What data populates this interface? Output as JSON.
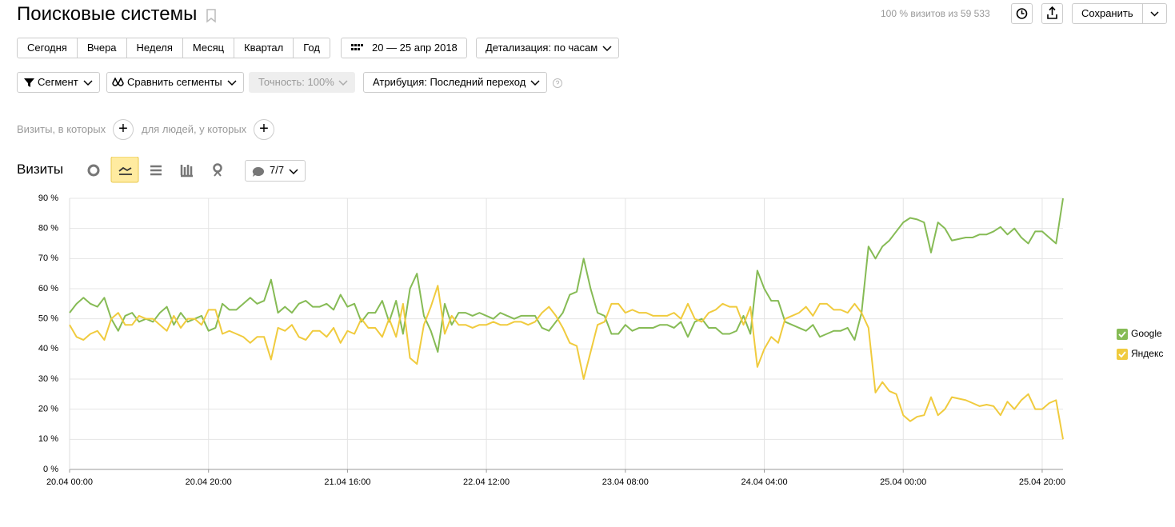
{
  "ui": {
    "title": "Поисковые системы",
    "visits_info": "100 % визитов из 59 533",
    "save": "Сохранить",
    "periods": [
      "Сегодня",
      "Вчера",
      "Неделя",
      "Месяц",
      "Квартал",
      "Год"
    ],
    "date_range": "20 — 25 апр 2018",
    "detail": "Детализация: по часам",
    "segment": "Сегмент",
    "compare": "Сравнить сегменты",
    "accuracy": "Точность: 100%",
    "attribution": "Атрибуция: Последний переход",
    "visits_where": "Визиты, в которых",
    "people_where": "для людей, у которых",
    "series_count": "7/7"
  },
  "chart_data": {
    "type": "line",
    "title": "Визиты",
    "categories": [
      "20.04 00:00",
      null,
      null,
      null,
      null,
      null,
      null,
      null,
      null,
      null,
      null,
      null,
      null,
      null,
      null,
      null,
      null,
      null,
      null,
      null,
      "20.04 20:00",
      null,
      null,
      null,
      null,
      null,
      null,
      null,
      null,
      null,
      null,
      null,
      null,
      null,
      null,
      null,
      null,
      null,
      null,
      null,
      "21.04 16:00",
      null,
      null,
      null,
      null,
      null,
      null,
      null,
      null,
      null,
      null,
      null,
      null,
      null,
      null,
      null,
      null,
      null,
      null,
      null,
      "22.04 12:00",
      null,
      null,
      null,
      null,
      null,
      null,
      null,
      null,
      null,
      null,
      null,
      null,
      null,
      null,
      null,
      null,
      null,
      null,
      null,
      "23.04 08:00",
      null,
      null,
      null,
      null,
      null,
      null,
      null,
      null,
      null,
      null,
      null,
      null,
      null,
      null,
      null,
      null,
      null,
      null,
      null,
      "24.04 04:00",
      null,
      null,
      null,
      null,
      null,
      null,
      null,
      null,
      null,
      null,
      null,
      null,
      null,
      null,
      null,
      null,
      null,
      null,
      null,
      "25.04 00:00",
      null,
      null,
      null,
      null,
      null,
      null,
      null,
      null,
      null,
      null,
      null,
      null,
      null,
      null,
      null,
      null,
      null,
      null,
      null,
      "25.04 20:00",
      null,
      null,
      null
    ],
    "series": [
      {
        "name": "Google",
        "color": "#86bb55",
        "values": [
          52,
          55,
          57,
          55,
          54,
          57,
          50,
          46,
          51,
          52,
          49,
          50,
          49,
          52,
          54,
          48,
          52,
          49,
          50,
          51,
          46,
          47,
          55,
          53,
          53,
          55,
          57,
          55,
          56,
          63,
          52,
          54,
          52,
          55,
          56,
          54,
          54,
          55,
          53,
          58,
          54,
          55,
          49,
          52,
          52,
          56,
          49,
          56,
          45,
          60,
          65,
          51,
          46,
          39,
          55,
          48,
          52,
          52,
          51,
          52,
          51,
          50,
          52,
          51,
          50,
          51,
          51,
          51,
          47,
          46,
          49,
          52,
          58,
          59,
          70,
          60,
          52,
          51,
          45,
          45,
          48,
          46,
          47,
          47,
          47,
          48,
          48,
          47,
          49,
          44,
          49,
          50,
          47,
          47,
          45,
          45,
          46,
          51,
          45,
          66,
          60,
          56,
          56,
          49,
          48,
          47,
          46,
          48,
          44,
          45,
          46,
          46,
          47,
          43,
          52,
          74,
          70,
          74,
          76,
          79,
          82,
          83.5,
          83,
          82,
          72,
          82,
          80,
          76,
          76.5,
          77,
          77,
          78,
          78,
          79,
          80.5,
          78,
          80,
          77,
          75,
          79,
          79,
          77,
          75,
          90
        ]
      },
      {
        "name": "Яндекс",
        "color": "#f0cb3e",
        "values": [
          48,
          44,
          43,
          45,
          46,
          43,
          50,
          52,
          48,
          48,
          51,
          50,
          50,
          48,
          46,
          51,
          47,
          50,
          50,
          48,
          53,
          53,
          45,
          46,
          45,
          44,
          42,
          44,
          44,
          36.5,
          47,
          46,
          48,
          44,
          43,
          46,
          46,
          44,
          47,
          42,
          46,
          45,
          50,
          47,
          47,
          44,
          50,
          44,
          55,
          37,
          35,
          48,
          54,
          61,
          45,
          51,
          48,
          48,
          47,
          48,
          48,
          49,
          48,
          48,
          49,
          49,
          48,
          49,
          52,
          54,
          51,
          47,
          42,
          41,
          30,
          39,
          48,
          49,
          55,
          55,
          52,
          53,
          52,
          52,
          51,
          51,
          51,
          52,
          50,
          55,
          50,
          49,
          52,
          53,
          55,
          54,
          54,
          48,
          54,
          34,
          40,
          44,
          42,
          50,
          51,
          52,
          54,
          51,
          55,
          55,
          53,
          53,
          52,
          55,
          52,
          47,
          25.5,
          29,
          26,
          25,
          18,
          16,
          17.5,
          18,
          24,
          18,
          20,
          24,
          23.5,
          23,
          22,
          21,
          21.5,
          21,
          18,
          22.5,
          20,
          23,
          25,
          20,
          20,
          22,
          23,
          10
        ]
      }
    ],
    "ylim": [
      0,
      90
    ],
    "yticks": [
      {
        "value": 0,
        "label": "0 %"
      },
      {
        "value": 10,
        "label": "10 %"
      },
      {
        "value": 20,
        "label": "20 %"
      },
      {
        "value": 30,
        "label": "30 %"
      },
      {
        "value": 40,
        "label": "40 %"
      },
      {
        "value": 50,
        "label": "50 %"
      },
      {
        "value": 60,
        "label": "60 %"
      },
      {
        "value": 70,
        "label": "70 %"
      },
      {
        "value": 80,
        "label": "80 %"
      },
      {
        "value": 90,
        "label": "90 %"
      }
    ],
    "grid": true,
    "legend": "right"
  }
}
